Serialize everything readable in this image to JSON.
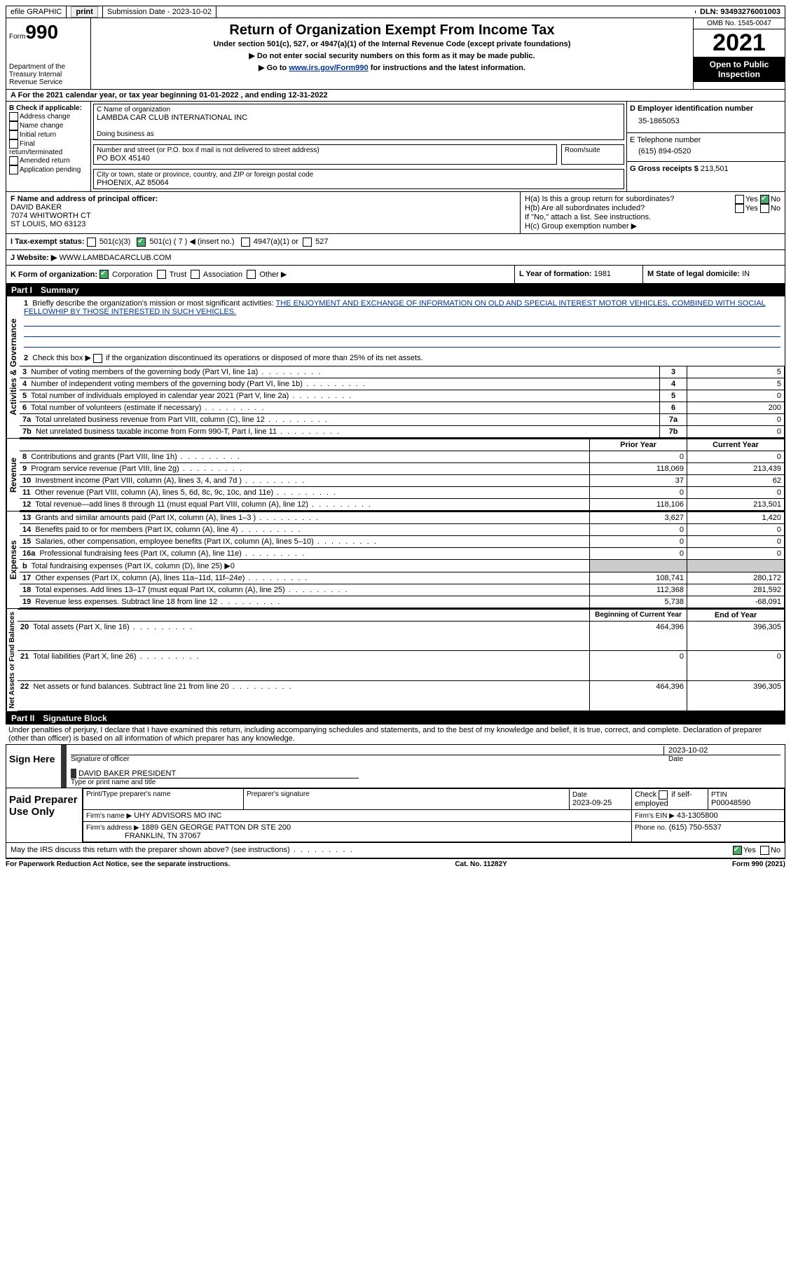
{
  "topbar": {
    "efile_label": "efile GRAPHIC",
    "print_btn": "print",
    "submission_label": "Submission Date - 2023-10-02",
    "dln_label": "DLN: 93493276001003"
  },
  "header": {
    "form_prefix": "Form",
    "form_number": "990",
    "dept": "Department of the Treasury Internal Revenue Service",
    "title": "Return of Organization Exempt From Income Tax",
    "subtitle": "Under section 501(c), 527, or 4947(a)(1) of the Internal Revenue Code (except private foundations)",
    "note1": "▶ Do not enter social security numbers on this form as it may be made public.",
    "note2_pre": "▶ Go to ",
    "note2_link": "www.irs.gov/Form990",
    "note2_post": " for instructions and the latest information.",
    "omb": "OMB No. 1545-0047",
    "year": "2021",
    "public": "Open to Public Inspection"
  },
  "a_line": "For the 2021 calendar year, or tax year beginning 01-01-2022   , and ending 12-31-2022",
  "box_b": {
    "label": "B Check if applicable:",
    "opts": [
      "Address change",
      "Name change",
      "Initial return",
      "Final return/terminated",
      "Amended return",
      "Application pending"
    ]
  },
  "box_c": {
    "name_label": "C Name of organization",
    "name": "LAMBDA CAR CLUB INTERNATIONAL INC",
    "dba_label": "Doing business as",
    "street_label": "Number and street (or P.O. box if mail is not delivered to street address)",
    "room_label": "Room/suite",
    "street": "PO BOX 45140",
    "city_label": "City or town, state or province, country, and ZIP or foreign postal code",
    "city": "PHOENIX, AZ  85064"
  },
  "box_d": {
    "label": "D Employer identification number",
    "value": "35-1865053"
  },
  "box_e": {
    "label": "E Telephone number",
    "value": "(615) 894-0520"
  },
  "box_g": {
    "label": "G Gross receipts $",
    "value": "213,501"
  },
  "box_f": {
    "label": "F  Name and address of principal officer:",
    "name": "DAVID BAKER",
    "street": "7074 WHITWORTH CT",
    "city": "ST LOUIS, MO  63123"
  },
  "box_h": {
    "ha": "H(a)  Is this a group return for subordinates?",
    "hb": "H(b)  Are all subordinates included?",
    "hb_note": "If \"No,\" attach a list. See instructions.",
    "hc": "H(c)  Group exemption number ▶",
    "yes": "Yes",
    "no": "No"
  },
  "box_i": {
    "label": "I  Tax-exempt status:",
    "c3": "501(c)(3)",
    "c": "501(c) ( 7 ) ◀ (insert no.)",
    "a1": "4947(a)(1) or",
    "s527": "527"
  },
  "box_j": {
    "label": "J  Website: ▶",
    "value": "WWW.LAMBDACARCLUB.COM"
  },
  "box_k": {
    "label": "K Form of organization:",
    "corp": "Corporation",
    "trust": "Trust",
    "assoc": "Association",
    "other": "Other ▶"
  },
  "box_l": {
    "label": "L Year of formation:",
    "value": "1981"
  },
  "box_m": {
    "label": "M State of legal domicile:",
    "value": "IN"
  },
  "part1": {
    "label": "Part I",
    "title": "Summary"
  },
  "summary": {
    "line1_label": "Briefly describe the organization's mission or most significant activities:",
    "line1_text": "THE ENJOYMENT AND EXCHANGE OF INFORMATION ON OLD AND SPECIAL INTEREST MOTOR VEHICLES, COMBINED WITH SOCIAL FELLOWHIP BY THOSE INTERESTED IN SUCH VEHICLES.",
    "line2": "Check this box ▶       if the organization discontinued its operations or disposed of more than 25% of its net assets.",
    "vert_ag": "Activities & Governance",
    "vert_rev": "Revenue",
    "vert_exp": "Expenses",
    "vert_na": "Net Assets or Fund Balances",
    "rows_ag": [
      {
        "n": "3",
        "label": "Number of voting members of the governing body (Part VI, line 1a)",
        "box": "3",
        "val": "5"
      },
      {
        "n": "4",
        "label": "Number of independent voting members of the governing body (Part VI, line 1b)",
        "box": "4",
        "val": "5"
      },
      {
        "n": "5",
        "label": "Total number of individuals employed in calendar year 2021 (Part V, line 2a)",
        "box": "5",
        "val": "0"
      },
      {
        "n": "6",
        "label": "Total number of volunteers (estimate if necessary)",
        "box": "6",
        "val": "200"
      },
      {
        "n": "7a",
        "label": "Total unrelated business revenue from Part VIII, column (C), line 12",
        "box": "7a",
        "val": "0"
      },
      {
        "n": "7b",
        "label": "Net unrelated business taxable income from Form 990-T, Part I, line 11",
        "box": "7b",
        "val": "0"
      }
    ],
    "col_prior": "Prior Year",
    "col_current": "Current Year",
    "rows_rev": [
      {
        "n": "8",
        "label": "Contributions and grants (Part VIII, line 1h)",
        "prior": "0",
        "curr": "0"
      },
      {
        "n": "9",
        "label": "Program service revenue (Part VIII, line 2g)",
        "prior": "118,069",
        "curr": "213,439"
      },
      {
        "n": "10",
        "label": "Investment income (Part VIII, column (A), lines 3, 4, and 7d )",
        "prior": "37",
        "curr": "62"
      },
      {
        "n": "11",
        "label": "Other revenue (Part VIII, column (A), lines 5, 6d, 8c, 9c, 10c, and 11e)",
        "prior": "0",
        "curr": "0"
      },
      {
        "n": "12",
        "label": "Total revenue—add lines 8 through 11 (must equal Part VIII, column (A), line 12)",
        "prior": "118,106",
        "curr": "213,501"
      }
    ],
    "rows_exp": [
      {
        "n": "13",
        "label": "Grants and similar amounts paid (Part IX, column (A), lines 1–3 )",
        "prior": "3,627",
        "curr": "1,420"
      },
      {
        "n": "14",
        "label": "Benefits paid to or for members (Part IX, column (A), line 4)",
        "prior": "0",
        "curr": "0"
      },
      {
        "n": "15",
        "label": "Salaries, other compensation, employee benefits (Part IX, column (A), lines 5–10)",
        "prior": "0",
        "curr": "0"
      },
      {
        "n": "16a",
        "label": "Professional fundraising fees (Part IX, column (A), line 11e)",
        "prior": "0",
        "curr": "0"
      },
      {
        "n": "b",
        "label": "Total fundraising expenses (Part IX, column (D), line 25) ▶0",
        "prior": "",
        "curr": "",
        "shade": true
      },
      {
        "n": "17",
        "label": "Other expenses (Part IX, column (A), lines 11a–11d, 11f–24e)",
        "prior": "108,741",
        "curr": "280,172"
      },
      {
        "n": "18",
        "label": "Total expenses. Add lines 13–17 (must equal Part IX, column (A), line 25)",
        "prior": "112,368",
        "curr": "281,592"
      },
      {
        "n": "19",
        "label": "Revenue less expenses. Subtract line 18 from line 12",
        "prior": "5,738",
        "curr": "-68,091"
      }
    ],
    "col_begin": "Beginning of Current Year",
    "col_end": "End of Year",
    "rows_na": [
      {
        "n": "20",
        "label": "Total assets (Part X, line 16)",
        "prior": "464,396",
        "curr": "396,305"
      },
      {
        "n": "21",
        "label": "Total liabilities (Part X, line 26)",
        "prior": "0",
        "curr": "0"
      },
      {
        "n": "22",
        "label": "Net assets or fund balances. Subtract line 21 from line 20",
        "prior": "464,396",
        "curr": "396,305"
      }
    ]
  },
  "part2": {
    "label": "Part II",
    "title": "Signature Block"
  },
  "sig": {
    "penalties": "Under penalties of perjury, I declare that I have examined this return, including accompanying schedules and statements, and to the best of my knowledge and belief, it is true, correct, and complete. Declaration of preparer (other than officer) is based on all information of which preparer has any knowledge.",
    "sign_here": "Sign Here",
    "sig_officer": "Signature of officer",
    "date": "Date",
    "sig_date": "2023-10-02",
    "name_title": "DAVID BAKER  PRESIDENT",
    "type_name": "Type or print name and title",
    "paid": "Paid Preparer Use Only",
    "prep_name_label": "Print/Type preparer's name",
    "prep_sig_label": "Preparer's signature",
    "prep_date_label": "Date",
    "prep_date": "2023-09-25",
    "check_self": "Check        if self-employed",
    "ptin_label": "PTIN",
    "ptin": "P00048590",
    "firm_name_label": "Firm's name    ▶",
    "firm_name": "UHY ADVISORS MO INC",
    "firm_ein_label": "Firm's EIN ▶",
    "firm_ein": "43-1305800",
    "firm_addr_label": "Firm's address ▶",
    "firm_addr1": "1889 GEN GEORGE PATTON DR STE 200",
    "firm_addr2": "FRANKLIN, TN  37067",
    "phone_label": "Phone no.",
    "phone": "(615) 750-5537",
    "may_discuss": "May the IRS discuss this return with the preparer shown above? (see instructions)",
    "yes": "Yes",
    "no": "No"
  },
  "footer": {
    "left": "For Paperwork Reduction Act Notice, see the separate instructions.",
    "mid": "Cat. No. 11282Y",
    "right": "Form 990 (2021)"
  }
}
